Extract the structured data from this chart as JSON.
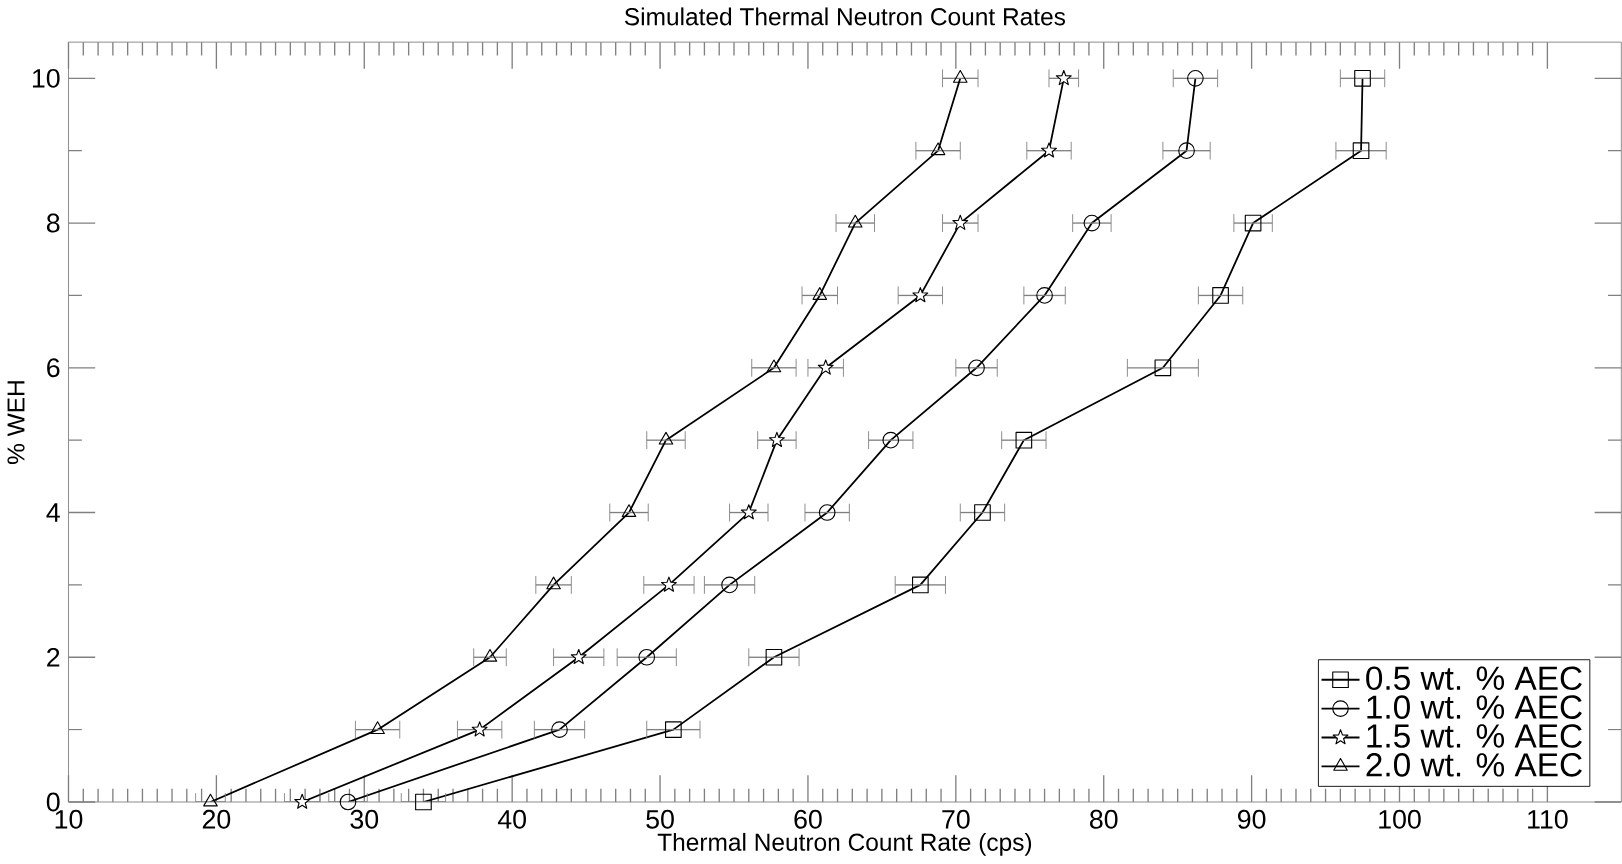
{
  "chart_data": {
    "type": "line",
    "title": "Simulated Thermal Neutron Count Rates",
    "xlabel": "Thermal Neutron Count Rate (cps)",
    "ylabel": "% WEH",
    "series": [
      {
        "name": "0.5 wt. % AEC",
        "color": "#000000",
        "marker": "square",
        "x": [
          34.0,
          50.9,
          57.7,
          67.6,
          71.8,
          74.6,
          84.0,
          87.9,
          90.1,
          97.4,
          97.5
        ],
        "values": [
          0,
          1,
          2,
          3,
          4,
          5,
          6,
          7,
          8,
          9,
          10
        ],
        "xerrors": [
          1.5,
          1.8,
          1.7,
          1.7,
          1.5,
          1.5,
          2.4,
          1.5,
          1.3,
          1.7,
          1.5
        ]
      },
      {
        "name": "1.0 wt. % AEC",
        "color": "#000000",
        "marker": "circle",
        "x": [
          28.9,
          43.2,
          49.1,
          54.7,
          61.3,
          65.6,
          71.4,
          76.0,
          79.2,
          85.6,
          86.2
        ],
        "values": [
          0,
          1,
          2,
          3,
          4,
          5,
          6,
          7,
          8,
          9,
          10
        ],
        "xerrors": [
          1.3,
          1.7,
          2.0,
          1.7,
          1.5,
          1.5,
          1.4,
          1.4,
          1.3,
          1.6,
          1.5
        ]
      },
      {
        "name": "1.5 wt. % AEC",
        "color": "#000000",
        "marker": "star",
        "x": [
          25.8,
          37.8,
          44.5,
          50.6,
          56.0,
          57.9,
          61.2,
          67.6,
          70.3,
          76.3,
          77.3
        ],
        "values": [
          0,
          1,
          2,
          3,
          4,
          5,
          6,
          7,
          8,
          9,
          10
        ],
        "xerrors": [
          1.2,
          1.5,
          1.7,
          1.7,
          1.3,
          1.3,
          1.2,
          1.5,
          1.2,
          1.5,
          1.0
        ]
      },
      {
        "name": "2.0 wt. % AEC",
        "color": "#000000",
        "marker": "triangle",
        "x": [
          19.6,
          30.9,
          38.5,
          42.8,
          47.9,
          50.4,
          57.7,
          60.8,
          63.2,
          68.8,
          70.3
        ],
        "values": [
          0,
          1,
          2,
          3,
          4,
          5,
          6,
          7,
          8,
          9,
          10
        ],
        "xerrors": [
          1.0,
          1.5,
          1.1,
          1.2,
          1.3,
          1.3,
          1.5,
          1.2,
          1.3,
          1.5,
          1.2
        ]
      }
    ],
    "xlim": [
      10,
      115
    ],
    "ylim": [
      0,
      10.5
    ],
    "xticks": [
      10,
      20,
      30,
      40,
      50,
      60,
      70,
      80,
      90,
      100,
      110
    ],
    "yticks": [
      0,
      2,
      4,
      6,
      8,
      10
    ],
    "grid": false,
    "legend": "bottom right",
    "line_style": "solid"
  }
}
